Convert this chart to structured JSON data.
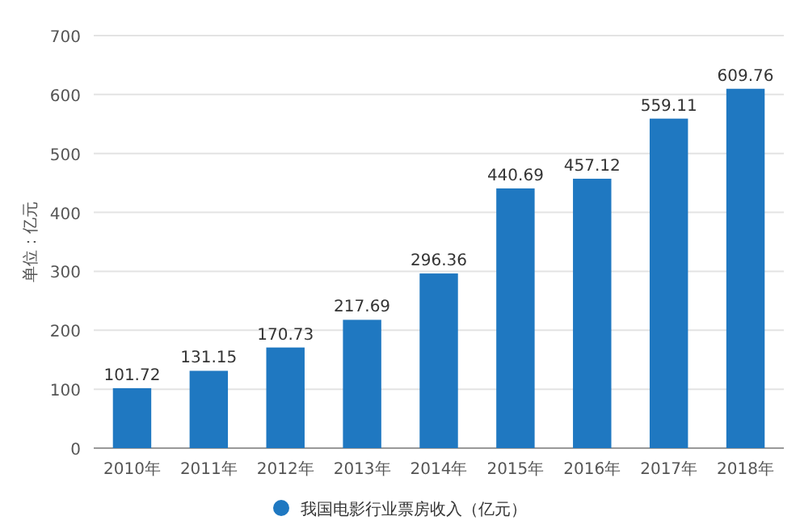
{
  "chart_data": {
    "type": "bar",
    "ylabel": "单位：亿元",
    "categories": [
      "2010年",
      "2011年",
      "2012年",
      "2013年",
      "2014年",
      "2015年",
      "2016年",
      "2017年",
      "2018年"
    ],
    "series": [
      {
        "name": "我国电影行业票房收入（亿元）",
        "color": "#1f78c1",
        "values": [
          101.72,
          131.15,
          170.73,
          217.69,
          296.36,
          440.69,
          457.12,
          559.11,
          609.76
        ]
      }
    ],
    "ylim": [
      0,
      700
    ],
    "yticks": [
      0,
      100,
      200,
      300,
      400,
      500,
      600,
      700
    ],
    "grid": "y",
    "legend": "bottom",
    "data_labels": true
  }
}
